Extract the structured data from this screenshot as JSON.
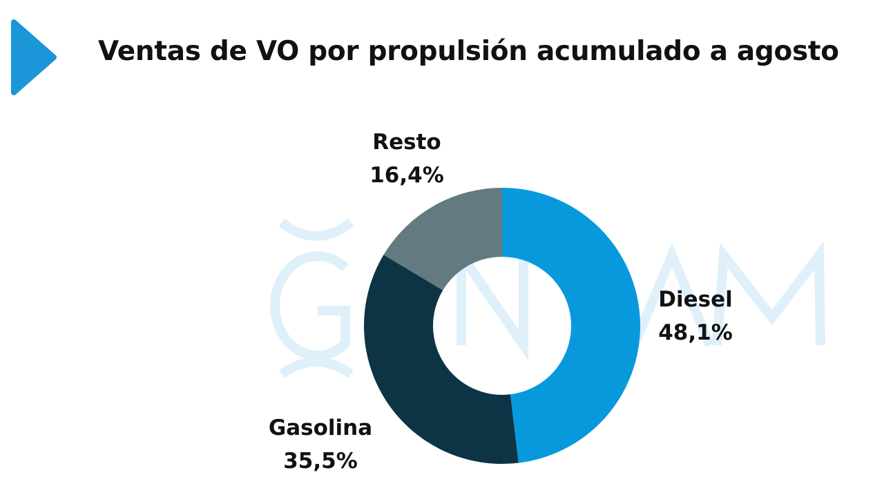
{
  "header": {
    "title": "Ventas de VO por propulsión acumulado a agosto",
    "marker_color": "#1b96d9"
  },
  "watermark": {
    "color": "#dff0fa"
  },
  "chart_data": {
    "type": "pie",
    "donut": true,
    "title": "Ventas de VO por propulsión acumulado a agosto",
    "start_angle_deg": 0,
    "direction": "clockwise",
    "slices": [
      {
        "label": "Diesel",
        "value": 48.1,
        "value_label": "48,1%",
        "color": "#0899dd"
      },
      {
        "label": "Gasolina",
        "value": 35.5,
        "value_label": "35,5%",
        "color": "#0c3445"
      },
      {
        "label": "Resto",
        "value": 16.4,
        "value_label": "16,4%",
        "color": "#637a80"
      }
    ]
  }
}
